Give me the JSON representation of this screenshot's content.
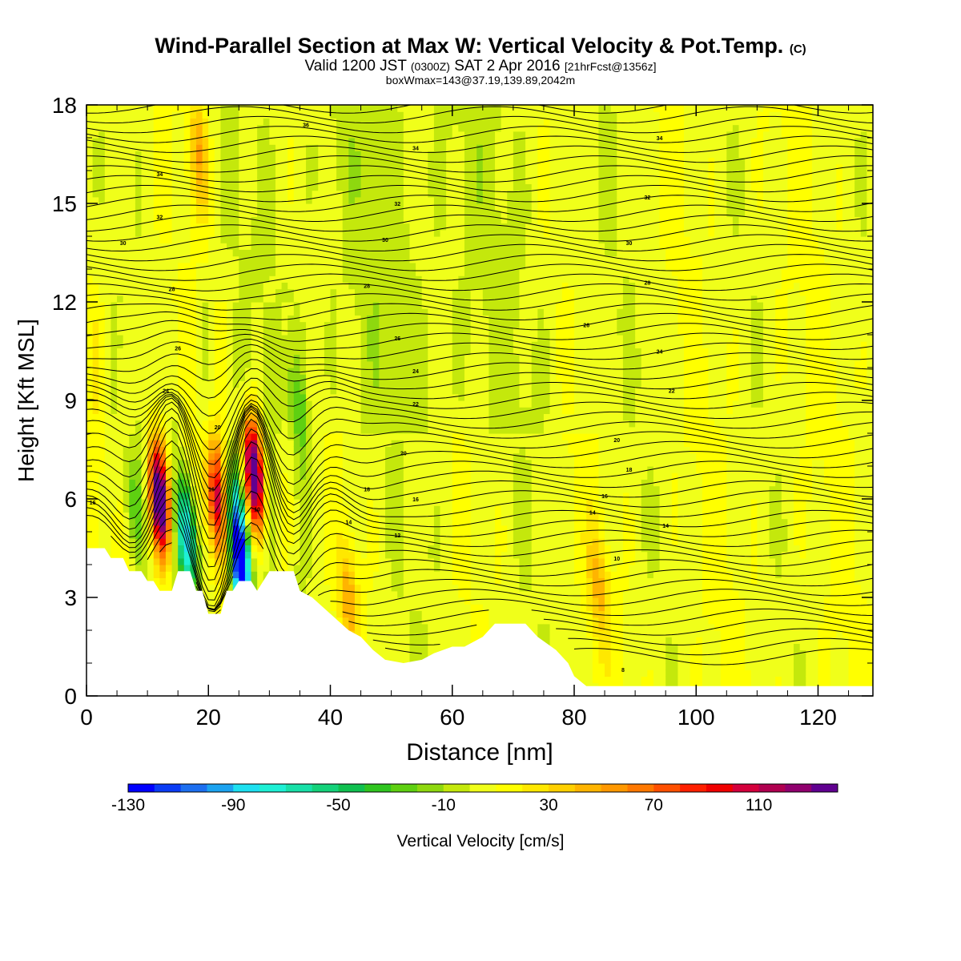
{
  "header": {
    "title": "Wind-Parallel Section at Max W: Vertical Velocity & Pot.Temp.",
    "title_units": "(C)",
    "subtitle_a": "Valid 1200 JST",
    "subtitle_b": "(0300Z)",
    "subtitle_c": "SAT 2 Apr 2016",
    "subtitle_d": "[21hrFcst@1356z]",
    "info": "boxWmax=143@37.19,139.89,2042m"
  },
  "chart_data": {
    "type": "heatmap",
    "xlabel": "Distance [nm]",
    "ylabel": "Height [Kft MSL]",
    "xlim": [
      0,
      129
    ],
    "ylim": [
      0,
      18
    ],
    "x_ticks": [
      0,
      20,
      40,
      60,
      80,
      100,
      120
    ],
    "y_ticks": [
      0,
      3,
      6,
      9,
      12,
      15,
      18
    ],
    "colorbar": {
      "label": "Vertical Velocity [cm/s]",
      "min": -130,
      "max": 150,
      "step": 10,
      "tick_values": [
        -130,
        -90,
        -50,
        -10,
        30,
        70,
        110
      ],
      "colors": [
        "#0000ff",
        "#0a3cf5",
        "#1d6ff0",
        "#1ca3f0",
        "#1ee0f0",
        "#1ef0d5",
        "#18e0a8",
        "#14d27a",
        "#10c050",
        "#30c520",
        "#5ed011",
        "#8ed80f",
        "#c4e80c",
        "#f0ff1a",
        "#ffff00",
        "#ffe800",
        "#ffd000",
        "#ffb400",
        "#ff9800",
        "#ff7800",
        "#ff5000",
        "#ff2000",
        "#f00000",
        "#d4003c",
        "#b00050",
        "#90006e",
        "#600090"
      ]
    },
    "terrain_kft": [
      [
        0,
        4.5
      ],
      [
        3,
        4.5
      ],
      [
        4,
        4.2
      ],
      [
        6,
        4.2
      ],
      [
        7,
        3.8
      ],
      [
        9,
        3.8
      ],
      [
        10,
        3.5
      ],
      [
        11,
        3.5
      ],
      [
        12,
        3.2
      ],
      [
        14,
        3.2
      ],
      [
        15,
        3.8
      ],
      [
        17,
        3.8
      ],
      [
        18,
        3.2
      ],
      [
        19,
        3.2
      ],
      [
        20,
        2.5
      ],
      [
        22,
        2.5
      ],
      [
        23,
        3.2
      ],
      [
        24,
        3.2
      ],
      [
        25,
        3.5
      ],
      [
        27,
        3.5
      ],
      [
        28,
        3.2
      ],
      [
        29,
        3.5
      ],
      [
        30,
        3.8
      ],
      [
        34,
        3.8
      ],
      [
        35,
        3.2
      ],
      [
        37,
        3.0
      ],
      [
        40,
        2.5
      ],
      [
        43,
        2.0
      ],
      [
        45,
        1.8
      ],
      [
        47,
        1.4
      ],
      [
        49,
        1.1
      ],
      [
        52,
        1.0
      ],
      [
        55,
        1.1
      ],
      [
        57,
        1.3
      ],
      [
        60,
        1.5
      ],
      [
        62,
        1.5
      ],
      [
        65,
        1.8
      ],
      [
        67,
        2.2
      ],
      [
        72,
        2.2
      ],
      [
        74,
        1.8
      ],
      [
        77,
        1.4
      ],
      [
        79,
        1.0
      ],
      [
        80,
        0.6
      ],
      [
        82,
        0.3
      ],
      [
        129,
        0.3
      ]
    ],
    "updrafts": [
      {
        "x": 12.0,
        "z": 6.0,
        "w": 145
      },
      {
        "x": 21.5,
        "z": 6.0,
        "w": 95
      },
      {
        "x": 27.5,
        "z": 6.8,
        "w": 140
      },
      {
        "x": 43.0,
        "z": 3.0,
        "w": 40
      },
      {
        "x": 84.0,
        "z": 3.4,
        "w": 35
      },
      {
        "x": 18.5,
        "z": 16.5,
        "w": 40
      }
    ],
    "downdrafts": [
      {
        "x": 16.5,
        "z": 4.8,
        "w": -95
      },
      {
        "x": 24.5,
        "z": 5.5,
        "w": -75
      },
      {
        "x": 25.5,
        "z": 3.7,
        "w": -130
      },
      {
        "x": 7.5,
        "z": 6.0,
        "w": -30
      },
      {
        "x": 35.0,
        "z": 8.5,
        "w": -25
      }
    ],
    "contour_labels": [
      {
        "text": "36",
        "x": 36,
        "z": 17.4
      },
      {
        "text": "34",
        "x": 54,
        "z": 16.7
      },
      {
        "text": "34",
        "x": 94,
        "z": 17.0
      },
      {
        "text": "34",
        "x": 12,
        "z": 15.9
      },
      {
        "text": "32",
        "x": 51,
        "z": 15.0
      },
      {
        "text": "32",
        "x": 92,
        "z": 15.2
      },
      {
        "text": "32",
        "x": 12,
        "z": 14.6
      },
      {
        "text": "30",
        "x": 6,
        "z": 13.8
      },
      {
        "text": "30",
        "x": 49,
        "z": 13.9
      },
      {
        "text": "30",
        "x": 89,
        "z": 13.8
      },
      {
        "text": "28",
        "x": 14,
        "z": 12.4
      },
      {
        "text": "28",
        "x": 46,
        "z": 12.5
      },
      {
        "text": "28",
        "x": 92,
        "z": 12.6
      },
      {
        "text": "26",
        "x": 15,
        "z": 10.6
      },
      {
        "text": "26",
        "x": 51,
        "z": 10.9
      },
      {
        "text": "26",
        "x": 82,
        "z": 11.3
      },
      {
        "text": "24",
        "x": 54,
        "z": 9.9
      },
      {
        "text": "24",
        "x": 94,
        "z": 10.5
      },
      {
        "text": "24",
        "x": 13,
        "z": 9.3
      },
      {
        "text": "22",
        "x": 54,
        "z": 8.9
      },
      {
        "text": "22",
        "x": 96,
        "z": 9.3
      },
      {
        "text": "20",
        "x": 21.5,
        "z": 8.2
      },
      {
        "text": "20",
        "x": 52,
        "z": 7.4
      },
      {
        "text": "20",
        "x": 87,
        "z": 7.8
      },
      {
        "text": "18",
        "x": 46,
        "z": 6.3
      },
      {
        "text": "18",
        "x": 89,
        "z": 6.9
      },
      {
        "text": "16",
        "x": 1,
        "z": 5.9
      },
      {
        "text": "16",
        "x": 54,
        "z": 6.0
      },
      {
        "text": "16",
        "x": 85,
        "z": 6.1
      },
      {
        "text": "16",
        "x": 20.5,
        "z": 6.3
      },
      {
        "text": "14",
        "x": 43,
        "z": 5.3
      },
      {
        "text": "14",
        "x": 83,
        "z": 5.6
      },
      {
        "text": "14",
        "x": 95,
        "z": 5.2
      },
      {
        "text": "12",
        "x": 51,
        "z": 4.9
      },
      {
        "text": "10",
        "x": 87,
        "z": 4.2
      },
      {
        "text": "10",
        "x": 28,
        "z": 5.7
      },
      {
        "text": "8",
        "x": 88,
        "z": 0.8
      }
    ]
  }
}
